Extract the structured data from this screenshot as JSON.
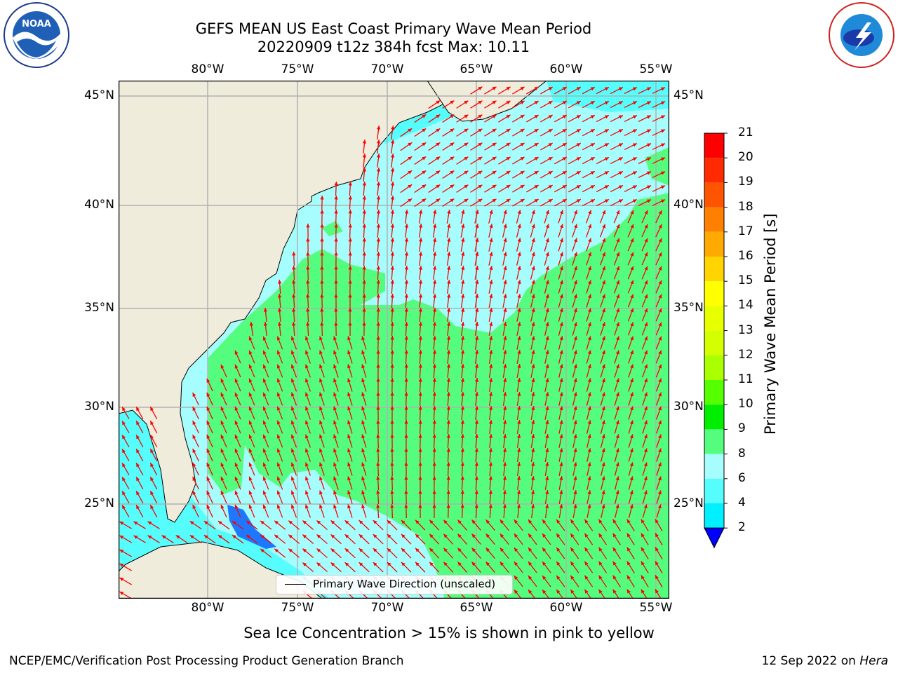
{
  "title": {
    "line1": "GEFS MEAN US East Coast Primary Wave Mean Period",
    "line2": "20220909 t12z 384h fcst   Max: 10.11"
  },
  "map": {
    "lon_labels": [
      "80°W",
      "75°W",
      "70°W",
      "65°W",
      "60°W",
      "55°W"
    ],
    "lat_labels": [
      "45°N",
      "40°N",
      "35°N",
      "30°N",
      "25°N"
    ],
    "lon_range": [
      -85,
      -54.3
    ],
    "lat_range": [
      20.5,
      46
    ],
    "colors": {
      "land": "#efecdc",
      "ocean_8_9": "#a6fdfd",
      "ocean_9_10": "#55fd7f",
      "ocean_6_8": "#55fdfd",
      "ocean_4_6": "#00f0ff",
      "ocean_2_4": "#1e78ff",
      "arrow": "#ff0000",
      "grid": "#b0b0b0"
    }
  },
  "legend": {
    "label": "Primary Wave Direction (unscaled)"
  },
  "colorbar": {
    "label": "Primary Wave Mean Period [s]",
    "ticks": [
      "21",
      "20",
      "19",
      "18",
      "17",
      "16",
      "15",
      "14",
      "13",
      "12",
      "11",
      "10",
      "9",
      "8",
      "6",
      "4",
      "2"
    ],
    "colors": [
      "#ff0000",
      "#ff2a00",
      "#ff5500",
      "#ff8000",
      "#ffaa00",
      "#ffd400",
      "#ffff00",
      "#e8ff00",
      "#d4ff00",
      "#aaff00",
      "#55ff00",
      "#00ee00",
      "#55fd7f",
      "#a6fdfd",
      "#55fdfd",
      "#00f0ff",
      "#1e78ff"
    ],
    "extend_color": "#0000ff"
  },
  "caption": "Sea Ice Concentration > 15% is shown in pink to yellow",
  "footer": {
    "left": "NCEP/EMC/Verification Post Processing Product Generation Branch",
    "right_prefix": "12 Sep 2022 on ",
    "right_host": "Hera"
  },
  "logos": {
    "left": "NOAA",
    "right": "NATIONAL WEATHER SERVICE"
  }
}
